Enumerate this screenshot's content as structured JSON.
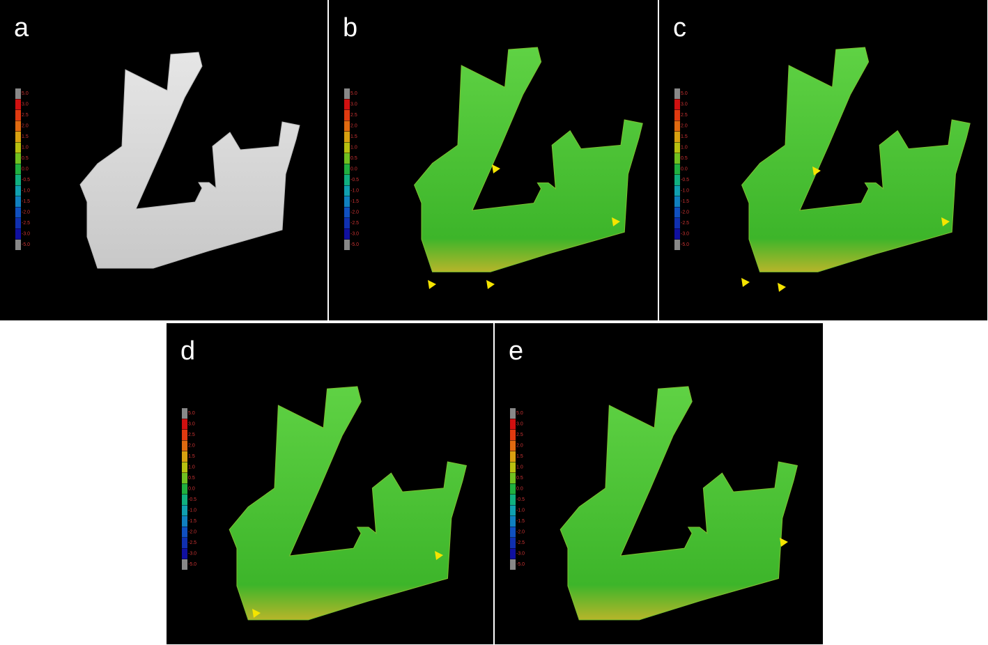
{
  "panels": [
    {
      "label": "a"
    },
    {
      "label": "b"
    },
    {
      "label": "c"
    },
    {
      "label": "d"
    },
    {
      "label": "e"
    }
  ],
  "scale_labels": [
    "5.0",
    "3.0",
    "2.5",
    "2.0",
    "1.5",
    "1.0",
    "0.5",
    "0.0",
    "-0.5",
    "-1.0",
    "-1.5",
    "-2.0",
    "-2.5",
    "-3.0",
    "-5.0"
  ]
}
